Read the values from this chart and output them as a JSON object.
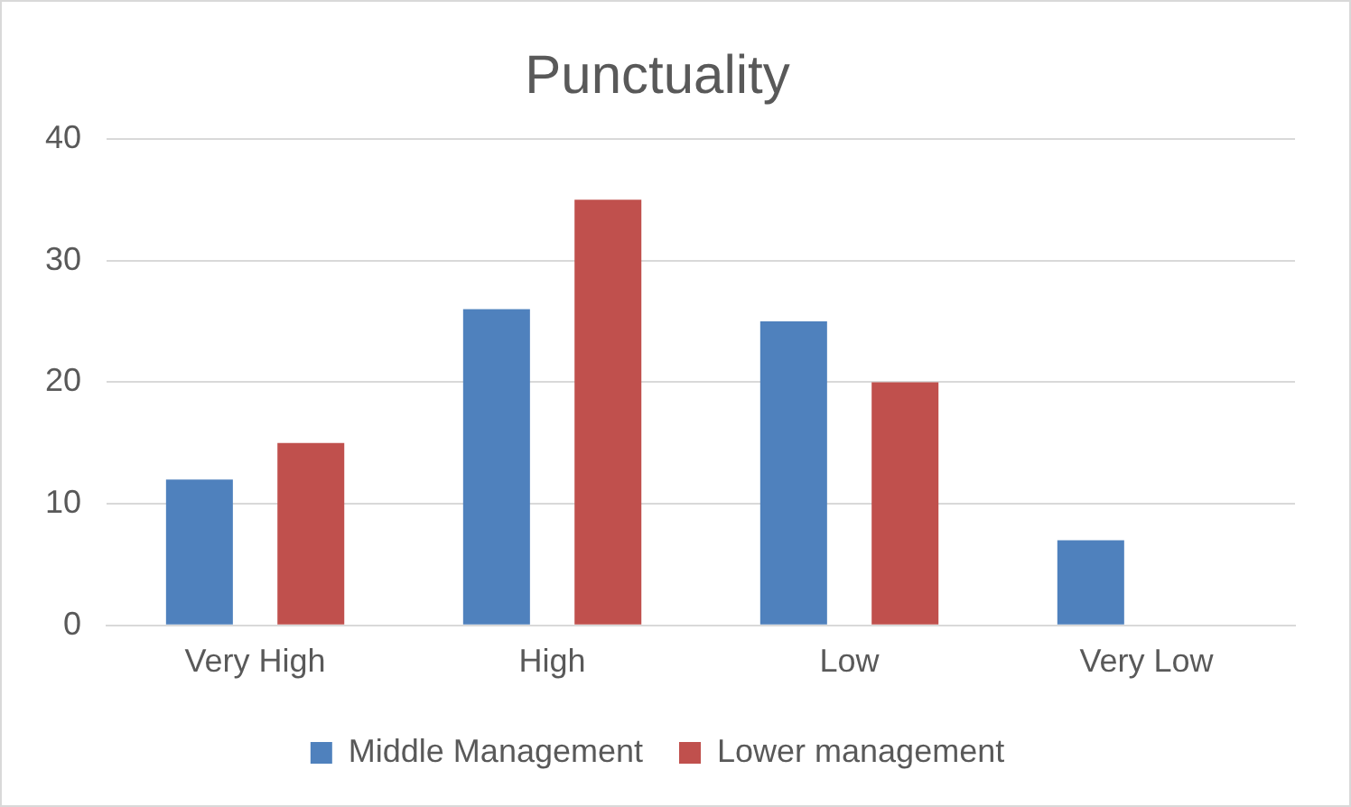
{
  "chart_data": {
    "type": "bar",
    "title": "Punctuality",
    "categories": [
      "Very High",
      "High",
      "Low",
      "Very Low"
    ],
    "series": [
      {
        "name": "Middle Management",
        "color": "#4f81bd",
        "values": [
          12,
          26,
          25,
          7
        ]
      },
      {
        "name": "Lower management",
        "color": "#c0504d",
        "values": [
          15,
          35,
          20,
          0
        ]
      }
    ],
    "ylim": [
      0,
      40
    ],
    "yticks": [
      0,
      10,
      20,
      30,
      40
    ],
    "grid": "y",
    "legend": "bottom"
  }
}
